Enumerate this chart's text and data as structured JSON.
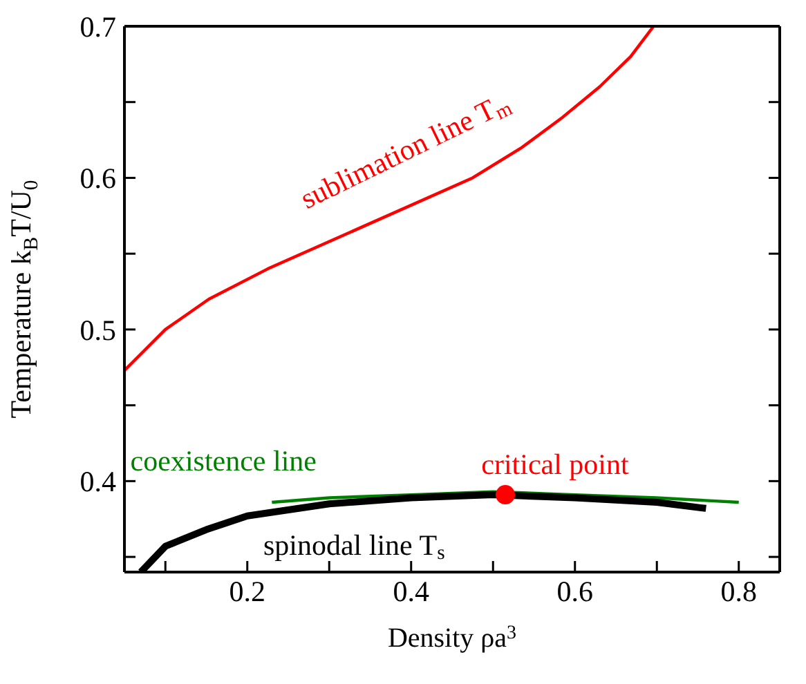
{
  "chart_data": {
    "type": "line",
    "xlabel": "Density ρa$^{3}$",
    "ylabel": "Temperature  k$_{B}$T/U$_{0}$",
    "xlim": [
      0.05,
      0.85
    ],
    "ylim": [
      0.34,
      0.7
    ],
    "xticks": [
      {
        "value": 0.1,
        "label": null
      },
      0.2,
      {
        "value": 0.3,
        "label": null
      },
      0.4,
      {
        "value": 0.5,
        "label": null
      },
      0.6,
      {
        "value": 0.7,
        "label": null
      },
      0.8
    ],
    "yticks": [
      {
        "value": 0.35,
        "label": null
      },
      0.4,
      {
        "value": 0.45,
        "label": null
      },
      0.5,
      {
        "value": 0.55,
        "label": null
      },
      0.6,
      {
        "value": 0.65,
        "label": null
      },
      0.7
    ],
    "legend": false,
    "marker": "none",
    "series": [
      {
        "name": "sublimation line T$_{m}$",
        "color": "#ff0000",
        "x": [
          0.05,
          0.1,
          0.153,
          0.225,
          0.475,
          0.535,
          0.585,
          0.63,
          0.668,
          0.696
        ],
        "values": [
          0.473,
          0.5,
          0.52,
          0.54,
          0.6,
          0.62,
          0.64,
          0.66,
          0.68,
          0.7
        ]
      },
      {
        "name": "coexistence line",
        "color": "#008000",
        "x": [
          0.23,
          0.3,
          0.4,
          0.5,
          0.6,
          0.7,
          0.8
        ],
        "values": [
          0.386,
          0.389,
          0.391,
          0.393,
          0.391,
          0.389,
          0.386
        ]
      },
      {
        "name": "spinodal line T$_{s}$",
        "color": "#000000",
        "x": [
          0.07,
          0.1,
          0.15,
          0.2,
          0.3,
          0.4,
          0.5,
          0.6,
          0.7,
          0.76
        ],
        "values": [
          0.34,
          0.357,
          0.368,
          0.377,
          0.385,
          0.389,
          0.391,
          0.389,
          0.386,
          0.382
        ]
      },
      {
        "name": "critical point",
        "type": "scatter",
        "marker": "circle",
        "color": "#ff0000",
        "x": [
          0.515
        ],
        "values": [
          0.391
        ]
      }
    ]
  }
}
